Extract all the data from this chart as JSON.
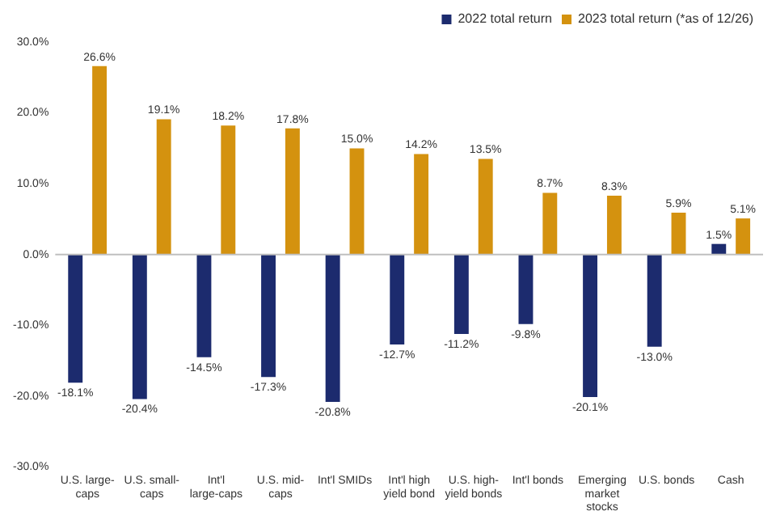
{
  "chart_data": {
    "type": "bar",
    "categories": [
      "U.S. large-caps",
      "U.S. small-caps",
      "Int'l large-caps",
      "U.S. mid-caps",
      "Int'l SMIDs",
      "Int'l high yield bond",
      "U.S. high-yield bonds",
      "Int'l bonds",
      "Emerging market stocks",
      "U.S. bonds",
      "Cash"
    ],
    "series": [
      {
        "name": "2022 total return",
        "color": "#1c2b6e",
        "values": [
          -18.1,
          -20.4,
          -14.5,
          -17.3,
          -20.8,
          -12.7,
          -11.2,
          -9.8,
          -20.1,
          -13.0,
          1.5
        ],
        "value_labels": [
          "-18.1%",
          "-20.4%",
          "-14.5%",
          "-17.3%",
          "-20.8%",
          "-12.7%",
          "-11.2%",
          "-9.8%",
          "-20.1%",
          "-13.0%",
          "1.5%"
        ]
      },
      {
        "name": "2023 total return (*as of 12/26)",
        "color": "#d4920f",
        "values": [
          26.6,
          19.1,
          18.2,
          17.8,
          15.0,
          14.2,
          13.5,
          8.7,
          8.3,
          5.9,
          5.1
        ],
        "value_labels": [
          "26.6%",
          "19.1%",
          "18.2%",
          "17.8%",
          "15.0%",
          "14.2%",
          "13.5%",
          "8.7%",
          "8.3%",
          "5.9%",
          "5.1%"
        ]
      }
    ],
    "ylim": [
      -30,
      30
    ],
    "yticks": [
      {
        "value": -30,
        "label": "-30.0%"
      },
      {
        "value": -20,
        "label": "-20.0%"
      },
      {
        "value": -10,
        "label": "-10.0%"
      },
      {
        "value": 0,
        "label": "0.0%"
      },
      {
        "value": 10,
        "label": "10.0%"
      },
      {
        "value": 20,
        "label": "20.0%"
      },
      {
        "value": 30,
        "label": "30.0%"
      }
    ],
    "ref_lines": [
      {
        "axis": "y",
        "value": 0,
        "color": "#bfbfbf"
      }
    ],
    "grid": false,
    "legend": "top right"
  }
}
